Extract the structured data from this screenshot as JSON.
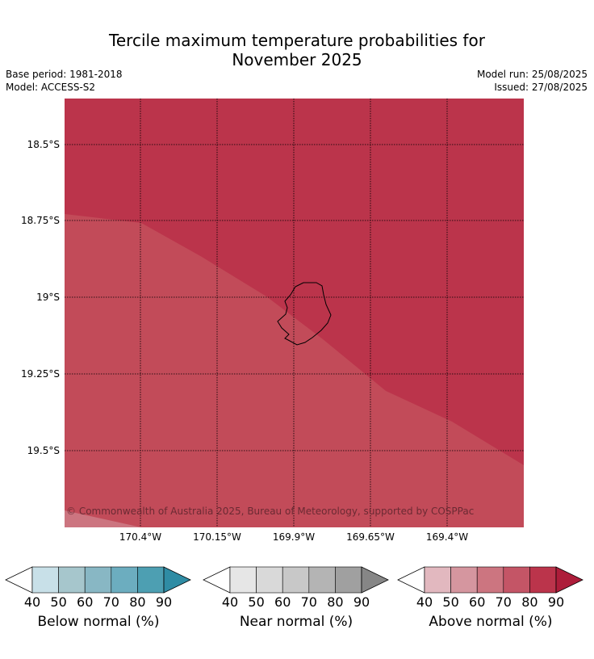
{
  "title_line1": "Tercile maximum temperature probabilities for",
  "title_line2": "November 2025",
  "base_period": "Base period: 1981-2018",
  "model": "Model: ACCESS-S2",
  "model_run": "Model run: 25/08/2025",
  "issued": "Issued: 27/08/2025",
  "copyright": "© Commonwealth of Australia 2025, Bureau of Meteorology, supported by COSPPac",
  "lat_labels": [
    "18.5°S",
    "18.75°S",
    "19°S",
    "19.25°S",
    "19.5°S"
  ],
  "lon_labels": [
    "170.4°W",
    "170.15°W",
    "169.9°W",
    "169.65°W",
    "169.4°W"
  ],
  "map_colors": {
    "above_80_90": "#bb344b",
    "above_70_80": "#c24b59"
  },
  "colorbars": [
    {
      "label": "Below normal (%)",
      "ticks": [
        "40",
        "50",
        "60",
        "70",
        "80",
        "90"
      ],
      "colors": [
        "#c8e0e8",
        "#a6c6cc",
        "#88b7c4",
        "#6cadbf",
        "#4d9fb2",
        "#2f8ca4"
      ]
    },
    {
      "label": "Near normal (%)",
      "ticks": [
        "40",
        "50",
        "60",
        "70",
        "80",
        "90"
      ],
      "colors": [
        "#e6e6e6",
        "#d9d9d9",
        "#c8c8c8",
        "#b4b4b4",
        "#a0a0a0",
        "#868686"
      ]
    },
    {
      "label": "Above normal (%)",
      "ticks": [
        "40",
        "50",
        "60",
        "70",
        "80",
        "90"
      ],
      "colors": [
        "#e2b8bf",
        "#d5969f",
        "#cc7580",
        "#c45566",
        "#bb344b",
        "#ad1d3a"
      ]
    }
  ]
}
